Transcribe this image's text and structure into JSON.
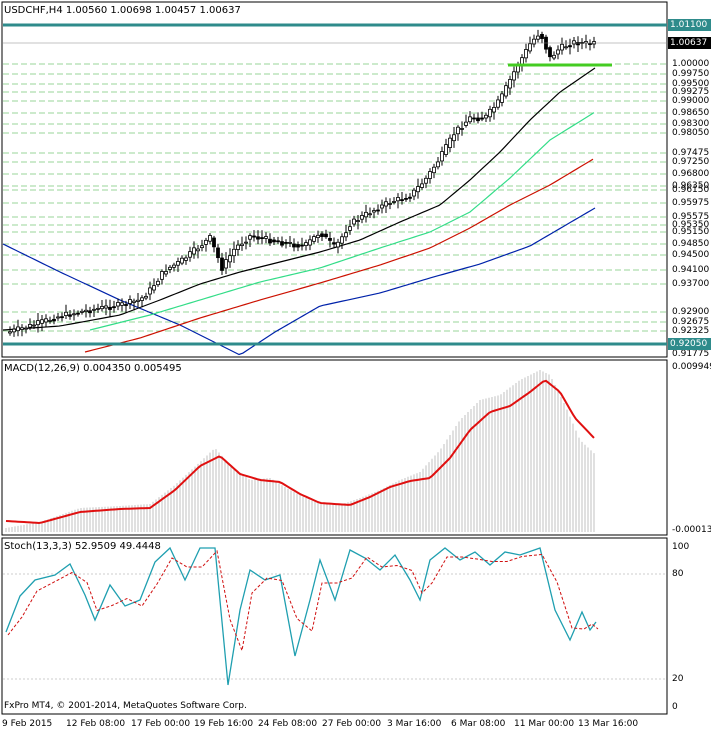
{
  "chart": {
    "symbol_header": "USDCHF,H4  1.00560 1.00698 1.00457 1.00637",
    "current_price_label": "1.00637",
    "resistance_label": "1.01100",
    "support_label": "0.92050",
    "price_axis_labels": [
      "1.00000",
      "0.99750",
      "0.99500",
      "0.99275",
      "0.99000",
      "0.98650",
      "0.98300",
      "0.98050",
      "0.97475",
      "0.97250",
      "0.96800",
      "0.96350",
      "0.96150",
      "0.95975",
      "0.95575",
      "0.95350",
      "0.95150",
      "0.94850",
      "0.94500",
      "0.94100",
      "0.93700",
      "0.92900",
      "0.92675",
      "0.92325",
      "0.91775"
    ],
    "colors": {
      "background": "#ffffff",
      "grid": "#9ad69a",
      "support_resistance": "#2e8b8b",
      "green_level": "#44cc22",
      "ma_black": "#000000",
      "ma_green": "#33dd88",
      "ma_red": "#cc1100",
      "ma_blue": "#0022aa",
      "candle": "#000000"
    }
  },
  "macd": {
    "header": "MACD(12,26,9) 0.004350 0.005495",
    "axis_top": "0.009949",
    "axis_bottom": "-0.000133"
  },
  "stoch": {
    "header": "Stoch(13,3,3) 52.9509 49.4448",
    "levels": [
      "100",
      "80",
      "20",
      "0"
    ]
  },
  "footer": {
    "copyright": "FxPro MT4, © 2001-2014, MetaQuotes Software Corp."
  },
  "time_axis": [
    "9 Feb 2015",
    "12 Feb 08:00",
    "17 Feb 00:00",
    "19 Feb 16:00",
    "24 Feb 08:00",
    "27 Feb 00:00",
    "3 Mar 16:00",
    "6 Mar 08:00",
    "11 Mar 00:00",
    "13 Mar 16:00"
  ]
}
